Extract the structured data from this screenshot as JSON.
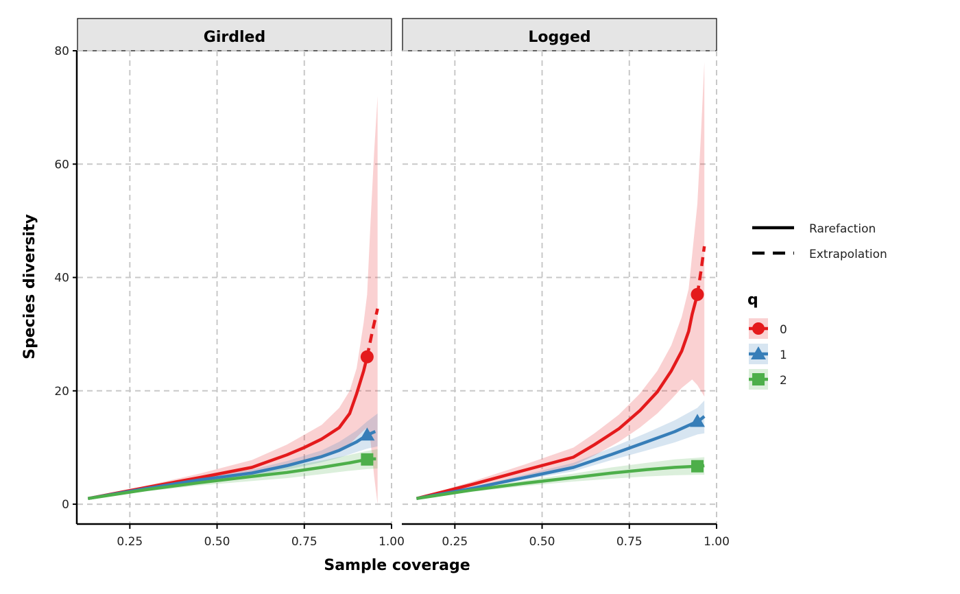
{
  "chart_data": {
    "type": "line",
    "xlabel": "Sample coverage",
    "ylabel": "Species diversity",
    "xlim": [
      0.1,
      1.0
    ],
    "ylim": [
      -3.5,
      80
    ],
    "x_ticks": [
      "0.25",
      "0.50",
      "0.75",
      "1.00"
    ],
    "y_ticks": [
      "0",
      "20",
      "40",
      "60",
      "80"
    ],
    "grid": "dashed",
    "legend_position": "right",
    "line_types": [
      {
        "label": "Rarefaction",
        "style": "solid"
      },
      {
        "label": "Extrapolation",
        "style": "dashed"
      }
    ],
    "legend_title": "q",
    "colors": {
      "0": "#E41A1C",
      "1": "#377EB8",
      "2": "#4DAF4A"
    },
    "shapes": {
      "0": "circle",
      "1": "triangle",
      "2": "square"
    },
    "panels": [
      {
        "title": "Girdled",
        "series": [
          {
            "q": "0",
            "rarefaction": [
              [
                0.13,
                1
              ],
              [
                0.3,
                3
              ],
              [
                0.45,
                4.7
              ],
              [
                0.6,
                6.5
              ],
              [
                0.7,
                8.7
              ],
              [
                0.75,
                10
              ],
              [
                0.8,
                11.5
              ],
              [
                0.85,
                13.5
              ],
              [
                0.88,
                16
              ],
              [
                0.9,
                19.5
              ],
              [
                0.92,
                23.5
              ],
              [
                0.93,
                26
              ]
            ],
            "extrapolation": [
              [
                0.93,
                26
              ],
              [
                0.945,
                30.5
              ],
              [
                0.96,
                34.5
              ]
            ],
            "observed": [
              0.93,
              26
            ],
            "ci": [
              [
                0.13,
                1,
                1
              ],
              [
                0.3,
                2.7,
                3.3
              ],
              [
                0.45,
                4.1,
                5.4
              ],
              [
                0.6,
                5.3,
                7.8
              ],
              [
                0.7,
                6.8,
                10.5
              ],
              [
                0.8,
                8.6,
                14
              ],
              [
                0.85,
                9.6,
                17
              ],
              [
                0.88,
                10.6,
                20
              ],
              [
                0.9,
                11.8,
                24
              ],
              [
                0.92,
                13,
                32
              ],
              [
                0.93,
                13.5,
                37
              ],
              [
                0.94,
                11,
                50
              ],
              [
                0.95,
                5,
                62
              ],
              [
                0.96,
                0,
                72
              ]
            ]
          },
          {
            "q": "1",
            "rarefaction": [
              [
                0.13,
                1
              ],
              [
                0.3,
                2.8
              ],
              [
                0.45,
                4.3
              ],
              [
                0.6,
                5.5
              ],
              [
                0.7,
                6.8
              ],
              [
                0.8,
                8.4
              ],
              [
                0.85,
                9.5
              ],
              [
                0.9,
                11
              ],
              [
                0.93,
                12.2
              ]
            ],
            "extrapolation": [
              [
                0.93,
                12.2
              ],
              [
                0.945,
                12.6
              ],
              [
                0.96,
                13
              ]
            ],
            "observed": [
              0.93,
              12.2
            ],
            "ci": [
              [
                0.13,
                1,
                1
              ],
              [
                0.3,
                2.6,
                3
              ],
              [
                0.45,
                4,
                4.7
              ],
              [
                0.6,
                5,
                6.1
              ],
              [
                0.7,
                6.1,
                7.6
              ],
              [
                0.8,
                7.4,
                9.5
              ],
              [
                0.85,
                8.2,
                11
              ],
              [
                0.9,
                9.2,
                13
              ],
              [
                0.93,
                9.8,
                14.6
              ],
              [
                0.96,
                10.2,
                16
              ]
            ]
          },
          {
            "q": "2",
            "rarefaction": [
              [
                0.13,
                1
              ],
              [
                0.3,
                2.6
              ],
              [
                0.45,
                3.8
              ],
              [
                0.6,
                4.9
              ],
              [
                0.7,
                5.6
              ],
              [
                0.8,
                6.5
              ],
              [
                0.88,
                7.3
              ],
              [
                0.93,
                7.9
              ]
            ],
            "extrapolation": [
              [
                0.93,
                7.9
              ],
              [
                0.945,
                8
              ],
              [
                0.96,
                8
              ]
            ],
            "observed": [
              0.93,
              7.9
            ],
            "ci": [
              [
                0.13,
                1,
                1
              ],
              [
                0.3,
                2.3,
                2.9
              ],
              [
                0.45,
                3.3,
                4.3
              ],
              [
                0.6,
                4.1,
                5.7
              ],
              [
                0.7,
                4.6,
                6.6
              ],
              [
                0.8,
                5.3,
                7.7
              ],
              [
                0.88,
                5.9,
                8.7
              ],
              [
                0.93,
                6.2,
                9.4
              ],
              [
                0.96,
                6.3,
                9.7
              ]
            ]
          }
        ]
      },
      {
        "title": "Logged",
        "series": [
          {
            "q": "0",
            "rarefaction": [
              [
                0.14,
                1
              ],
              [
                0.3,
                3.5
              ],
              [
                0.45,
                6
              ],
              [
                0.59,
                8.3
              ],
              [
                0.65,
                10.5
              ],
              [
                0.72,
                13.3
              ],
              [
                0.78,
                16.5
              ],
              [
                0.83,
                19.8
              ],
              [
                0.87,
                23.5
              ],
              [
                0.9,
                27
              ],
              [
                0.92,
                30.5
              ],
              [
                0.93,
                33.5
              ],
              [
                0.945,
                37
              ]
            ],
            "extrapolation": [
              [
                0.945,
                37
              ],
              [
                0.955,
                41
              ],
              [
                0.965,
                45.5
              ]
            ],
            "observed": [
              0.945,
              37
            ],
            "ci": [
              [
                0.14,
                1,
                1
              ],
              [
                0.3,
                3,
                4
              ],
              [
                0.45,
                5,
                7
              ],
              [
                0.59,
                6.8,
                10
              ],
              [
                0.65,
                8.6,
                12.5
              ],
              [
                0.72,
                11,
                15.8
              ],
              [
                0.78,
                13.5,
                19.5
              ],
              [
                0.83,
                16,
                23.5
              ],
              [
                0.87,
                18.5,
                28
              ],
              [
                0.9,
                20.5,
                33
              ],
              [
                0.92,
                21.5,
                38
              ],
              [
                0.93,
                22,
                44
              ],
              [
                0.945,
                21,
                53
              ],
              [
                0.955,
                20,
                65
              ],
              [
                0.965,
                19,
                78
              ]
            ]
          },
          {
            "q": "1",
            "rarefaction": [
              [
                0.14,
                1
              ],
              [
                0.3,
                2.8
              ],
              [
                0.45,
                4.7
              ],
              [
                0.59,
                6.5
              ],
              [
                0.7,
                8.8
              ],
              [
                0.8,
                11
              ],
              [
                0.88,
                12.8
              ],
              [
                0.945,
                14.6
              ]
            ],
            "extrapolation": [
              [
                0.945,
                14.6
              ],
              [
                0.955,
                15
              ],
              [
                0.965,
                15.5
              ]
            ],
            "observed": [
              0.945,
              14.6
            ],
            "ci": [
              [
                0.14,
                1,
                1
              ],
              [
                0.3,
                2.6,
                3
              ],
              [
                0.45,
                4.3,
                5.2
              ],
              [
                0.59,
                5.8,
                7.3
              ],
              [
                0.7,
                7.8,
                10
              ],
              [
                0.8,
                9.5,
                12.6
              ],
              [
                0.88,
                10.9,
                14.8
              ],
              [
                0.945,
                12.3,
                17
              ],
              [
                0.965,
                12.5,
                18.3
              ]
            ]
          },
          {
            "q": "2",
            "rarefaction": [
              [
                0.14,
                1
              ],
              [
                0.3,
                2.5
              ],
              [
                0.45,
                3.7
              ],
              [
                0.59,
                4.7
              ],
              [
                0.7,
                5.5
              ],
              [
                0.8,
                6.1
              ],
              [
                0.88,
                6.5
              ],
              [
                0.945,
                6.7
              ]
            ],
            "extrapolation": [
              [
                0.945,
                6.7
              ],
              [
                0.955,
                6.7
              ],
              [
                0.965,
                6.8
              ]
            ],
            "observed": [
              0.945,
              6.7
            ],
            "ci": [
              [
                0.14,
                1,
                1
              ],
              [
                0.3,
                2.2,
                2.8
              ],
              [
                0.45,
                3.2,
                4.2
              ],
              [
                0.59,
                4,
                5.4
              ],
              [
                0.7,
                4.5,
                6.5
              ],
              [
                0.8,
                4.9,
                7.3
              ],
              [
                0.88,
                5.1,
                7.9
              ],
              [
                0.945,
                5.2,
                8.2
              ],
              [
                0.965,
                5.2,
                8.3
              ]
            ]
          }
        ]
      }
    ]
  }
}
